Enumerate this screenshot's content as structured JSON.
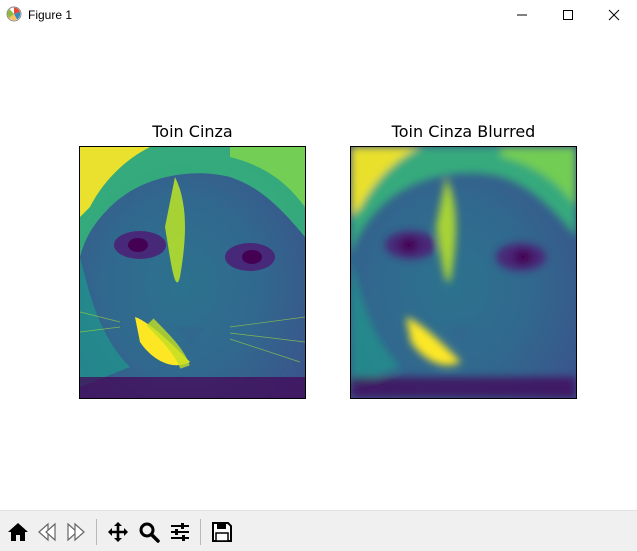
{
  "window": {
    "title": "Figure 1",
    "minimize_icon": "minimize-icon",
    "maximize_icon": "maximize-icon",
    "close_icon": "close-icon"
  },
  "figure": {
    "subplots": [
      {
        "title": "Toin Cinza",
        "image": "grayscale cat face rendered with viridis colormap"
      },
      {
        "title": "Toin Cinza Blurred",
        "image": "blurred grayscale cat face rendered with viridis colormap"
      }
    ],
    "colormap": "viridis",
    "colors": {
      "low": "#440154",
      "mid": "#21918c",
      "high": "#fde725"
    }
  },
  "toolbar": {
    "buttons": [
      {
        "name": "home",
        "icon": "home-icon"
      },
      {
        "name": "back",
        "icon": "back-arrow-icon"
      },
      {
        "name": "forward",
        "icon": "forward-arrow-icon"
      },
      {
        "name": "pan",
        "icon": "move-icon"
      },
      {
        "name": "zoom",
        "icon": "zoom-icon"
      },
      {
        "name": "configure-subplots",
        "icon": "sliders-icon"
      },
      {
        "name": "save",
        "icon": "save-icon"
      }
    ]
  }
}
